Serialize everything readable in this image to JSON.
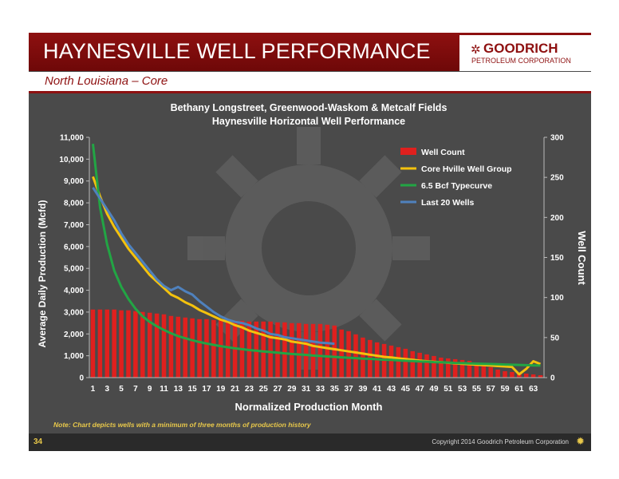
{
  "header": {
    "title": "HAYNESVILLE WELL PERFORMANCE",
    "subtitle": "North Louisiana – Core",
    "logo_mark": "✲",
    "logo_name": "GOODRICH",
    "logo_sub": "PETROLEUM CORPORATION"
  },
  "footer": {
    "page_number": "34",
    "copyright": "Copyright 2014 Goodrich Petroleum Corporation",
    "gear_icon": "gear-icon"
  },
  "note": "Note:  Chart depicts wells with a minimum of three months of production history",
  "colors": {
    "brand_red": "#8e1010",
    "well_count": "#e0201e",
    "core_group": "#f4c20d",
    "typecurve": "#22a544",
    "last20": "#4f81bd"
  },
  "chart_data": {
    "type": "bar",
    "title": "Bethany Longstreet, Greenwood-Waskom & Metcalf Fields",
    "subtitle": "Haynesville Horizontal Well Performance",
    "xlabel": "Normalized Production Month",
    "ylabel": "Average Daily Production (Mcfd)",
    "y2label": "Well Count",
    "ylim": [
      0,
      11000
    ],
    "y2lim": [
      0,
      300
    ],
    "yticks": [
      "0",
      "1,000",
      "2,000",
      "3,000",
      "4,000",
      "5,000",
      "6,000",
      "7,000",
      "8,000",
      "9,000",
      "10,000",
      "11,000"
    ],
    "y2ticks": [
      "0",
      "50",
      "100",
      "150",
      "200",
      "250",
      "300"
    ],
    "xticks": [
      "1",
      "3",
      "5",
      "7",
      "9",
      "11",
      "13",
      "15",
      "17",
      "19",
      "21",
      "23",
      "25",
      "27",
      "29",
      "31",
      "33",
      "35",
      "37",
      "39",
      "41",
      "43",
      "45",
      "47",
      "49",
      "51",
      "53",
      "55",
      "57",
      "59",
      "61",
      "63"
    ],
    "legend_position": "top-right",
    "months": [
      1,
      2,
      3,
      4,
      5,
      6,
      7,
      8,
      9,
      10,
      11,
      12,
      13,
      14,
      15,
      16,
      17,
      18,
      19,
      20,
      21,
      22,
      23,
      24,
      25,
      26,
      27,
      28,
      29,
      30,
      31,
      32,
      33,
      34,
      35,
      36,
      37,
      38,
      39,
      40,
      41,
      42,
      43,
      44,
      45,
      46,
      47,
      48,
      49,
      50,
      51,
      52,
      53,
      54,
      55,
      56,
      57,
      58,
      59,
      60,
      61,
      62,
      63,
      64
    ],
    "series": [
      {
        "name": "Well Count",
        "kind": "bar",
        "axis": "right",
        "values": [
          85,
          85,
          85,
          85,
          84,
          84,
          83,
          82,
          81,
          80,
          79,
          77,
          76,
          75,
          74,
          73,
          73,
          72,
          72,
          71,
          71,
          71,
          70,
          70,
          70,
          70,
          69,
          69,
          68,
          68,
          67,
          67,
          67,
          66,
          65,
          60,
          58,
          54,
          50,
          47,
          44,
          42,
          40,
          38,
          36,
          33,
          31,
          29,
          27,
          25,
          24,
          23,
          22,
          21,
          19,
          16,
          13,
          10,
          8,
          7,
          6,
          5,
          4,
          3
        ]
      },
      {
        "name": "Core Hville Well Group",
        "kind": "line",
        "axis": "left",
        "values": [
          9200,
          8300,
          7500,
          6900,
          6400,
          5900,
          5500,
          5100,
          4700,
          4400,
          4100,
          3800,
          3650,
          3450,
          3300,
          3100,
          2950,
          2800,
          2650,
          2550,
          2400,
          2300,
          2150,
          2050,
          1950,
          1850,
          1800,
          1750,
          1650,
          1600,
          1550,
          1450,
          1400,
          1350,
          1300,
          1250,
          1200,
          1150,
          1100,
          1050,
          1000,
          950,
          920,
          880,
          850,
          820,
          780,
          750,
          720,
          700,
          680,
          650,
          630,
          610,
          590,
          570,
          550,
          530,
          510,
          490,
          150,
          400,
          750,
          620
        ]
      },
      {
        "name": "6.5 Bcf Typecurve",
        "kind": "line",
        "axis": "left",
        "values": [
          10700,
          7800,
          6100,
          4900,
          4150,
          3600,
          3150,
          2800,
          2550,
          2350,
          2180,
          2030,
          1900,
          1800,
          1710,
          1630,
          1560,
          1500,
          1440,
          1390,
          1340,
          1300,
          1260,
          1230,
          1200,
          1170,
          1140,
          1110,
          1080,
          1060,
          1040,
          1010,
          990,
          970,
          950,
          930,
          910,
          890,
          870,
          860,
          840,
          820,
          810,
          790,
          770,
          760,
          740,
          730,
          710,
          700,
          690,
          670,
          660,
          650,
          640,
          630,
          620,
          610,
          600,
          590,
          580,
          570,
          560,
          550
        ]
      },
      {
        "name": "Last 20 Wells",
        "kind": "line",
        "axis": "left",
        "values": [
          8700,
          8200,
          7700,
          7200,
          6600,
          6100,
          5700,
          5300,
          4900,
          4500,
          4200,
          4000,
          4150,
          3950,
          3800,
          3500,
          3250,
          3000,
          2800,
          2650,
          2550,
          2500,
          2400,
          2250,
          2150,
          2000,
          1950,
          1850,
          1800,
          1750,
          1700,
          1650,
          1600,
          1580,
          1550
        ]
      }
    ]
  }
}
